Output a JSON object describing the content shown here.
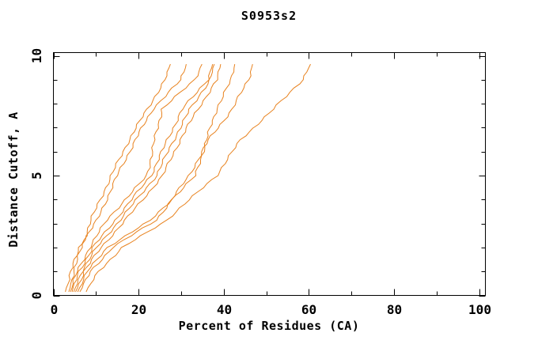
{
  "chart_data": {
    "type": "line",
    "title": "S0953s2",
    "xlabel": "Percent of Residues (CA)",
    "ylabel": "Distance Cutoff, A",
    "xlim": [
      0,
      101.5
    ],
    "ylim": [
      0,
      10.1
    ],
    "x_major_ticks": [
      0,
      20,
      40,
      60,
      80,
      100
    ],
    "x_minor_step": 10,
    "y_major_ticks": [
      0,
      5,
      10
    ],
    "y_minor_step": 1,
    "grid": false,
    "legend": "none",
    "line_color": "#e8821e",
    "frame_color": "#000000",
    "y_levels": [
      0.15,
      1.0,
      2.0,
      3.14,
      5.0,
      6.5,
      7.77,
      9.0,
      9.65
    ],
    "series": [
      {
        "x": [
          3.6,
          4.8,
          6.6,
          8.8,
          13.6,
          17.8,
          22.0,
          26.3,
          27.5
        ]
      },
      {
        "x": [
          2.8,
          4.2,
          6.0,
          10.3,
          15.0,
          19.3,
          23.3,
          30.0,
          31.2
        ]
      },
      {
        "x": [
          4.0,
          5.6,
          8.5,
          12.5,
          22.0,
          23.8,
          25.5,
          33.2,
          34.9
        ]
      },
      {
        "x": [
          4.4,
          6.0,
          9.3,
          14.5,
          22.9,
          26.8,
          30.3,
          36.2,
          37.4
        ]
      },
      {
        "x": [
          4.8,
          6.6,
          10.2,
          15.6,
          24.2,
          28.3,
          32.1,
          36.8,
          37.8
        ]
      },
      {
        "x": [
          5.2,
          7.2,
          11.2,
          16.9,
          25.7,
          29.8,
          33.9,
          38.5,
          39.3
        ]
      },
      {
        "x": [
          5.7,
          8.0,
          12.6,
          22.9,
          33.4,
          36.0,
          38.3,
          41.8,
          42.6
        ]
      },
      {
        "x": [
          6.2,
          8.8,
          13.8,
          24.2,
          31.9,
          36.5,
          42.0,
          45.8,
          46.8
        ]
      },
      {
        "x": [
          7.7,
          10.5,
          16.3,
          26.6,
          38.3,
          44.0,
          51.7,
          58.5,
          60.4
        ]
      }
    ]
  }
}
